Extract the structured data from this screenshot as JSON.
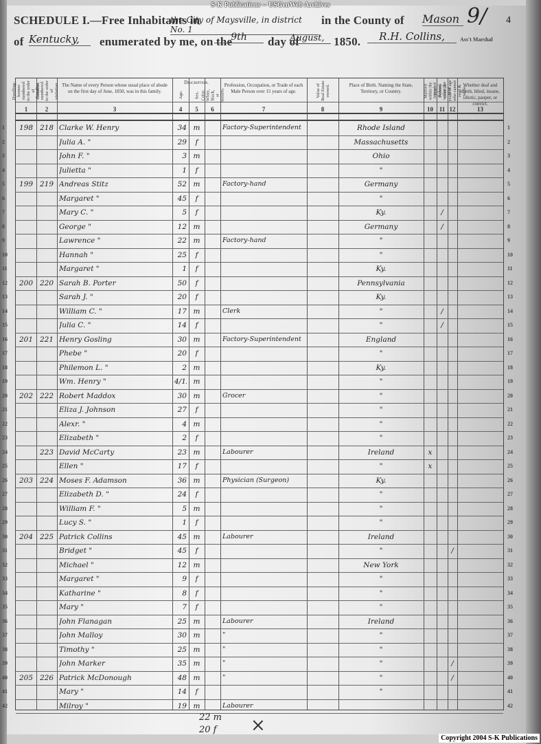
{
  "watermark_top": "S-K Publications -- USGenWeb Archives",
  "copyright": "Copyright 2004 S-K Publications",
  "heading": {
    "line1_prefix": "SCHEDULE I.—Free Inhabitants in",
    "location": "the City of Maysville, in district No. 1",
    "county_label": "in the County of",
    "county": "Mason",
    "page_number": "9/",
    "page_number_printed": "4",
    "state_prefix": "of",
    "state": "Kentucky,",
    "enumerated_label": "enumerated by me, on the",
    "day": "9th",
    "day_of_label": "day of",
    "month": "August,",
    "year": "1850.",
    "marshal": "R.H. Collins,",
    "marshal_label": "Ass't Marshal"
  },
  "columns": [
    {
      "num": "1",
      "label": "Dwelling-houses numbered in the order of visitation."
    },
    {
      "num": "2",
      "label": "Families numbered in the order of visitation."
    },
    {
      "num": "3",
      "label": "The Name of every Person whose usual place of abode on the first day of June, 1850, was in this family."
    },
    {
      "num": "4",
      "label": "Age."
    },
    {
      "num": "5",
      "label": "Sex."
    },
    {
      "num": "6",
      "label": "Color. White, black, or mulatto."
    },
    {
      "num": "7",
      "label": "Profession, Occupation, or Trade of each Male Person over 15 years of age."
    },
    {
      "num": "8",
      "label": "Value of Real Estate owned."
    },
    {
      "num": "9",
      "label": "Place of Birth. Naming the State, Territory, or Country."
    },
    {
      "num": "10",
      "label": "Married within the year."
    },
    {
      "num": "11",
      "label": "Attended School within the year."
    },
    {
      "num": "12",
      "label": "Persons over 20 years of age who cannot read & write."
    },
    {
      "num": "13",
      "label": "Whether deaf and dumb, blind, insane, idiotic, pauper, or convict."
    }
  ],
  "description_group_label": "Description.",
  "rows": [
    {
      "line": "1",
      "dwelling": "198",
      "family": "218",
      "name": "Clarke W. Henry",
      "age": "34",
      "sex": "m",
      "occupation": "Factory-Superintendent",
      "birthplace": "Rhode Island",
      "c10": "",
      "c11": "",
      "c12": ""
    },
    {
      "line": "2",
      "dwelling": "",
      "family": "",
      "name": "Julia A.  \"",
      "age": "29",
      "sex": "f",
      "occupation": "",
      "birthplace": "Massachusetts",
      "c10": "",
      "c11": "",
      "c12": ""
    },
    {
      "line": "3",
      "dwelling": "",
      "family": "",
      "name": "John F.  \"",
      "age": "3",
      "sex": "m",
      "occupation": "",
      "birthplace": "Ohio",
      "c10": "",
      "c11": "",
      "c12": ""
    },
    {
      "line": "4",
      "dwelling": "",
      "family": "",
      "name": "Julietta  \"",
      "age": "1",
      "sex": "f",
      "occupation": "",
      "birthplace": "\"",
      "c10": "",
      "c11": "",
      "c12": ""
    },
    {
      "line": "5",
      "dwelling": "199",
      "family": "219",
      "name": "Andreas Stitz",
      "age": "52",
      "sex": "m",
      "occupation": "Factory-hand",
      "birthplace": "Germany",
      "c10": "",
      "c11": "",
      "c12": ""
    },
    {
      "line": "6",
      "dwelling": "",
      "family": "",
      "name": "Margaret  \"",
      "age": "45",
      "sex": "f",
      "occupation": "",
      "birthplace": "\"",
      "c10": "",
      "c11": "",
      "c12": ""
    },
    {
      "line": "7",
      "dwelling": "",
      "family": "",
      "name": "Mary C.  \"",
      "age": "5",
      "sex": "f",
      "occupation": "",
      "birthplace": "Ky.",
      "c10": "",
      "c11": "/",
      "c12": ""
    },
    {
      "line": "8",
      "dwelling": "",
      "family": "",
      "name": "George  \"",
      "age": "12",
      "sex": "m",
      "occupation": "",
      "birthplace": "Germany",
      "c10": "",
      "c11": "/",
      "c12": ""
    },
    {
      "line": "9",
      "dwelling": "",
      "family": "",
      "name": "Lawrence  \"",
      "age": "22",
      "sex": "m",
      "occupation": "Factory-hand",
      "birthplace": "\"",
      "c10": "",
      "c11": "",
      "c12": ""
    },
    {
      "line": "10",
      "dwelling": "",
      "family": "",
      "name": "Hannah  \"",
      "age": "25",
      "sex": "f",
      "occupation": "",
      "birthplace": "\"",
      "c10": "",
      "c11": "",
      "c12": ""
    },
    {
      "line": "11",
      "dwelling": "",
      "family": "",
      "name": "Margaret  \"",
      "age": "1",
      "sex": "f",
      "occupation": "",
      "birthplace": "Ky.",
      "c10": "",
      "c11": "",
      "c12": ""
    },
    {
      "line": "12",
      "dwelling": "200",
      "family": "220",
      "name": "Sarah B. Porter",
      "age": "50",
      "sex": "f",
      "occupation": "",
      "birthplace": "Pennsylvania",
      "c10": "",
      "c11": "",
      "c12": ""
    },
    {
      "line": "13",
      "dwelling": "",
      "family": "",
      "name": "Sarah J.  \"",
      "age": "20",
      "sex": "f",
      "occupation": "",
      "birthplace": "Ky.",
      "c10": "",
      "c11": "",
      "c12": ""
    },
    {
      "line": "14",
      "dwelling": "",
      "family": "",
      "name": "William C.  \"",
      "age": "17",
      "sex": "m",
      "occupation": "Clerk",
      "birthplace": "\"",
      "c10": "",
      "c11": "/",
      "c12": ""
    },
    {
      "line": "15",
      "dwelling": "",
      "family": "",
      "name": "Julia C.  \"",
      "age": "14",
      "sex": "f",
      "occupation": "",
      "birthplace": "\"",
      "c10": "",
      "c11": "/",
      "c12": ""
    },
    {
      "line": "16",
      "dwelling": "201",
      "family": "221",
      "name": "Henry Gosling",
      "age": "30",
      "sex": "m",
      "occupation": "Factory-Superintendent",
      "birthplace": "England",
      "c10": "",
      "c11": "",
      "c12": ""
    },
    {
      "line": "17",
      "dwelling": "",
      "family": "",
      "name": "Phebe  \"",
      "age": "20",
      "sex": "f",
      "occupation": "",
      "birthplace": "\"",
      "c10": "",
      "c11": "",
      "c12": ""
    },
    {
      "line": "18",
      "dwelling": "",
      "family": "",
      "name": "Philemon L.  \"",
      "age": "2",
      "sex": "m",
      "occupation": "",
      "birthplace": "Ky.",
      "c10": "",
      "c11": "",
      "c12": ""
    },
    {
      "line": "19",
      "dwelling": "",
      "family": "",
      "name": "Wm. Henry  \"",
      "age": "4/12",
      "sex": "m",
      "occupation": "",
      "birthplace": "\"",
      "c10": "",
      "c11": "",
      "c12": ""
    },
    {
      "line": "20",
      "dwelling": "202",
      "family": "222",
      "name": "Robert Maddox",
      "age": "30",
      "sex": "m",
      "occupation": "Grocer",
      "birthplace": "\"",
      "c10": "",
      "c11": "",
      "c12": ""
    },
    {
      "line": "21",
      "dwelling": "",
      "family": "",
      "name": "Eliza J. Johnson",
      "age": "27",
      "sex": "f",
      "occupation": "",
      "birthplace": "\"",
      "c10": "",
      "c11": "",
      "c12": ""
    },
    {
      "line": "22",
      "dwelling": "",
      "family": "",
      "name": "Alexr.  \"",
      "age": "4",
      "sex": "m",
      "occupation": "",
      "birthplace": "\"",
      "c10": "",
      "c11": "",
      "c12": ""
    },
    {
      "line": "23",
      "dwelling": "",
      "family": "",
      "name": "Elizabeth  \"",
      "age": "2",
      "sex": "f",
      "occupation": "",
      "birthplace": "\"",
      "c10": "",
      "c11": "",
      "c12": ""
    },
    {
      "line": "24",
      "dwelling": "",
      "family": "223",
      "name": "David McCarty",
      "age": "23",
      "sex": "m",
      "occupation": "Labourer",
      "birthplace": "Ireland",
      "c10": "x",
      "c11": "",
      "c12": ""
    },
    {
      "line": "25",
      "dwelling": "",
      "family": "",
      "name": "Ellen  \"",
      "age": "17",
      "sex": "f",
      "occupation": "",
      "birthplace": "\"",
      "c10": "x",
      "c11": "",
      "c12": ""
    },
    {
      "line": "26",
      "dwelling": "203",
      "family": "224",
      "name": "Moses F. Adamson",
      "age": "36",
      "sex": "m",
      "occupation": "Physician (Surgeon)",
      "birthplace": "Ky.",
      "c10": "",
      "c11": "",
      "c12": ""
    },
    {
      "line": "27",
      "dwelling": "",
      "family": "",
      "name": "Elizabeth D.  \"",
      "age": "24",
      "sex": "f",
      "occupation": "",
      "birthplace": "\"",
      "c10": "",
      "c11": "",
      "c12": ""
    },
    {
      "line": "28",
      "dwelling": "",
      "family": "",
      "name": "William F.  \"",
      "age": "5",
      "sex": "m",
      "occupation": "",
      "birthplace": "\"",
      "c10": "",
      "c11": "",
      "c12": ""
    },
    {
      "line": "29",
      "dwelling": "",
      "family": "",
      "name": "Lucy S.  \"",
      "age": "1",
      "sex": "f",
      "occupation": "",
      "birthplace": "\"",
      "c10": "",
      "c11": "",
      "c12": ""
    },
    {
      "line": "30",
      "dwelling": "204",
      "family": "225",
      "name": "Patrick Collins",
      "age": "45",
      "sex": "m",
      "occupation": "Labourer",
      "birthplace": "Ireland",
      "c10": "",
      "c11": "",
      "c12": ""
    },
    {
      "line": "31",
      "dwelling": "",
      "family": "",
      "name": "Bridget  \"",
      "age": "45",
      "sex": "f",
      "occupation": "",
      "birthplace": "\"",
      "c10": "",
      "c11": "",
      "c12": "/"
    },
    {
      "line": "32",
      "dwelling": "",
      "family": "",
      "name": "Michael  \"",
      "age": "12",
      "sex": "m",
      "occupation": "",
      "birthplace": "New York",
      "c10": "",
      "c11": "",
      "c12": ""
    },
    {
      "line": "33",
      "dwelling": "",
      "family": "",
      "name": "Margaret  \"",
      "age": "9",
      "sex": "f",
      "occupation": "",
      "birthplace": "\"",
      "c10": "",
      "c11": "",
      "c12": ""
    },
    {
      "line": "34",
      "dwelling": "",
      "family": "",
      "name": "Katharine  \"",
      "age": "8",
      "sex": "f",
      "occupation": "",
      "birthplace": "\"",
      "c10": "",
      "c11": "",
      "c12": ""
    },
    {
      "line": "35",
      "dwelling": "",
      "family": "",
      "name": "Mary  \"",
      "age": "7",
      "sex": "f",
      "occupation": "",
      "birthplace": "\"",
      "c10": "",
      "c11": "",
      "c12": ""
    },
    {
      "line": "36",
      "dwelling": "",
      "family": "",
      "name": "John Flanagan",
      "age": "25",
      "sex": "m",
      "occupation": "Labourer",
      "birthplace": "Ireland",
      "c10": "",
      "c11": "",
      "c12": ""
    },
    {
      "line": "37",
      "dwelling": "",
      "family": "",
      "name": "John Malloy",
      "age": "30",
      "sex": "m",
      "occupation": "\"",
      "birthplace": "\"",
      "c10": "",
      "c11": "",
      "c12": ""
    },
    {
      "line": "38",
      "dwelling": "",
      "family": "",
      "name": "Timothy  \"",
      "age": "25",
      "sex": "m",
      "occupation": "\"",
      "birthplace": "\"",
      "c10": "",
      "c11": "",
      "c12": ""
    },
    {
      "line": "39",
      "dwelling": "",
      "family": "",
      "name": "John Marker",
      "age": "35",
      "sex": "m",
      "occupation": "\"",
      "birthplace": "\"",
      "c10": "",
      "c11": "",
      "c12": "/"
    },
    {
      "line": "40",
      "dwelling": "205",
      "family": "226",
      "name": "Patrick McDonough",
      "age": "48",
      "sex": "m",
      "occupation": "\"",
      "birthplace": "\"",
      "c10": "",
      "c11": "",
      "c12": "/"
    },
    {
      "line": "41",
      "dwelling": "",
      "family": "",
      "name": "Mary  \"",
      "age": "14",
      "sex": "f",
      "occupation": "",
      "birthplace": "\"",
      "c10": "",
      "c11": "",
      "c12": ""
    },
    {
      "line": "42",
      "dwelling": "",
      "family": "",
      "name": "Milroy  \"",
      "age": "19",
      "sex": "m",
      "occupation": "Labourer",
      "birthplace": "",
      "c10": "",
      "c11": "",
      "c12": ""
    }
  ],
  "tally": {
    "males": "22 m",
    "females": "20 f"
  }
}
